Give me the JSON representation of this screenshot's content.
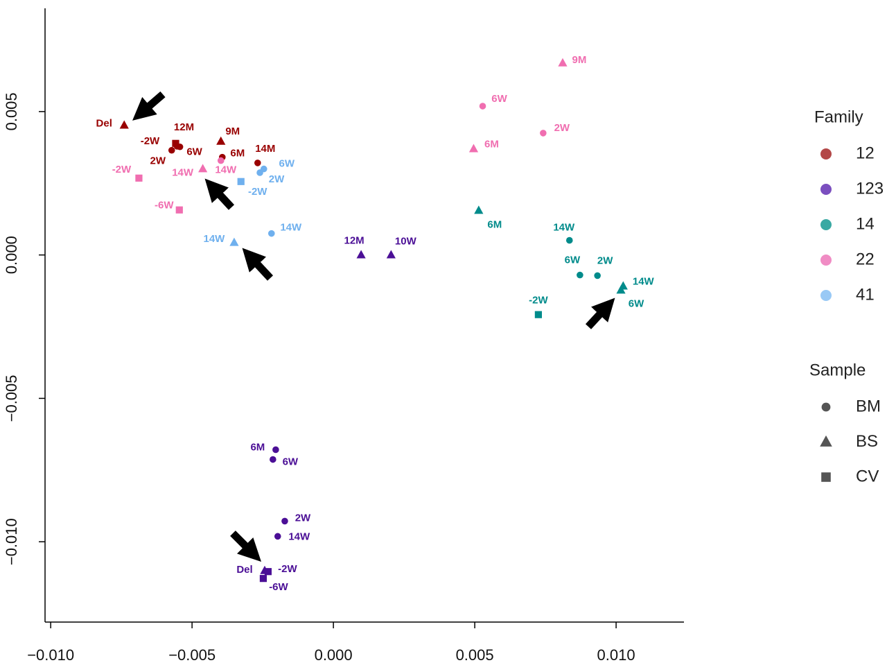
{
  "chart_data": {
    "type": "scatter",
    "xlim": [
      -0.0102,
      0.0124
    ],
    "ylim": [
      -0.0128,
      0.0086
    ],
    "xticks": [
      {
        "value": -0.01,
        "label": "−0.010"
      },
      {
        "value": -0.005,
        "label": "−0.005"
      },
      {
        "value": 0,
        "label": "0.000"
      },
      0.005,
      {
        "value": 0.01,
        "label": "0.010"
      }
    ],
    "yticks": [
      {
        "value": -0.01,
        "label": "−0.010"
      },
      {
        "value": -0.005,
        "label": "−0.005"
      },
      {
        "value": 0,
        "label": "0.000"
      },
      0.005
    ],
    "legend_title": "Family",
    "sample_title": "Sample",
    "samples": [
      {
        "name": "BM",
        "shape": "circle"
      },
      {
        "name": "BS",
        "shape": "triangle"
      },
      {
        "name": "CV",
        "shape": "square"
      }
    ],
    "series": [
      {
        "name": "12",
        "color": "#990000",
        "legend_color": "#b34848",
        "x": [
          -0.0074,
          -0.00558,
          -0.00553,
          -0.00572,
          -0.00543,
          -0.00398,
          -0.00393,
          -0.00268
        ],
        "y": [
          0.00452,
          0.00389,
          0.00379,
          0.00365,
          0.00377,
          0.00396,
          0.00341,
          0.00321
        ],
        "sample": [
          "BS",
          "CV",
          "BM",
          "BM",
          "BM",
          "BS",
          "BM",
          "BM"
        ],
        "labels": [
          "Del",
          "-2W",
          "12M",
          "2W",
          "6W",
          "9M",
          "6M",
          "14M"
        ]
      },
      {
        "name": "123",
        "color": "#4b0f96",
        "legend_color": "#7b4fbf",
        "x": [
          0.00098,
          0.00204,
          -0.00204,
          -0.00214,
          -0.00172,
          -0.00197,
          -0.00243,
          -0.00231,
          -0.00248
        ],
        "y": [
          0.0,
          0.0,
          -0.00679,
          -0.00713,
          -0.00928,
          -0.00981,
          -0.01101,
          -0.01104,
          -0.01128
        ],
        "sample": [
          "BS",
          "BS",
          "BM",
          "BM",
          "BM",
          "BM",
          "BS",
          "CV",
          "CV"
        ],
        "labels": [
          "12M",
          "10W",
          "6M",
          "6W",
          "2W",
          "14W",
          "Del",
          "-2W",
          "-6W"
        ]
      },
      {
        "name": "14",
        "color": "#008b8b",
        "legend_color": "#3aa9a3",
        "x": [
          0.00514,
          0.00835,
          0.00872,
          0.00934,
          0.01025,
          0.01017,
          0.00725
        ],
        "y": [
          0.00155,
          0.00051,
          -0.0007,
          -0.00072,
          -0.00109,
          -0.00123,
          -0.00208
        ],
        "sample": [
          "BS",
          "BM",
          "BM",
          "BM",
          "BS",
          "BS",
          "CV"
        ],
        "labels": [
          "6M",
          "14W",
          "6W",
          "2W",
          "14W",
          "6W",
          "-2W"
        ]
      },
      {
        "name": "22",
        "color": "#f06eb0",
        "legend_color": "#f08cc4",
        "x": [
          -0.00688,
          -0.00462,
          -0.00398,
          -0.00545,
          0.00811,
          0.00528,
          0.00742,
          0.00496
        ],
        "y": [
          0.00268,
          0.003,
          0.00329,
          0.00157,
          0.00669,
          0.00519,
          0.00425,
          0.0037
        ],
        "sample": [
          "CV",
          "BS",
          "BM",
          "CV",
          "BS",
          "BM",
          "BM",
          "BS"
        ],
        "labels": [
          "-2W",
          "14W",
          "14W",
          "-6W",
          "9M",
          "6W",
          "2W",
          "6M"
        ]
      },
      {
        "name": "41",
        "color": "#6fb0ee",
        "legend_color": "#99c9f5",
        "x": [
          -0.00246,
          -0.0026,
          -0.00327,
          -0.00351,
          -0.00219
        ],
        "y": [
          0.003,
          0.00287,
          0.00256,
          0.00043,
          0.00075
        ],
        "sample": [
          "BM",
          "BM",
          "CV",
          "BS",
          "BM"
        ],
        "labels": [
          "6W",
          "2W",
          "-2W",
          "14W",
          "14W"
        ]
      }
    ]
  }
}
